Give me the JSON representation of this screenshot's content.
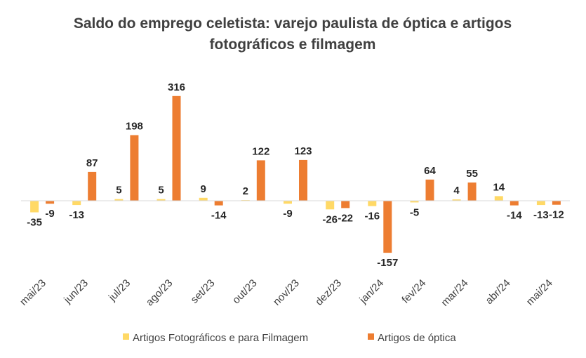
{
  "chart_data": {
    "type": "bar",
    "title_lines": [
      "Saldo do emprego celetista: varejo paulista de óptica e artigos",
      "fotográficos e filmagem"
    ],
    "categories": [
      "mai/23",
      "jun/23",
      "jul/23",
      "ago/23",
      "set/23",
      "out/23",
      "nov/23",
      "dez/23",
      "jan/24",
      "fev/24",
      "mar/24",
      "abr/24",
      "mai/24"
    ],
    "series": [
      {
        "name": "Artigos Fotográficos e para Filmagem",
        "color": "#FFD966",
        "values": [
          -35,
          -13,
          5,
          5,
          9,
          2,
          -9,
          -26,
          -16,
          -5,
          4,
          14,
          -13
        ],
        "labels": [
          "-35",
          "-13",
          "5",
          "5",
          "9",
          "2",
          "-9",
          "-26",
          "-16",
          "-5",
          "4",
          "14",
          "-13"
        ]
      },
      {
        "name": "Artigos de óptica",
        "color": "#ED7D31",
        "values": [
          -9,
          87,
          198,
          316,
          -14,
          122,
          123,
          -22,
          -157,
          64,
          55,
          -14,
          -12
        ],
        "labels": [
          "-9",
          "87",
          "198",
          "316",
          "-14",
          "122",
          "123",
          "-22",
          "-157",
          "64",
          "55",
          "-14",
          "-12"
        ]
      }
    ],
    "legend_position": "bottom",
    "grid": false
  }
}
